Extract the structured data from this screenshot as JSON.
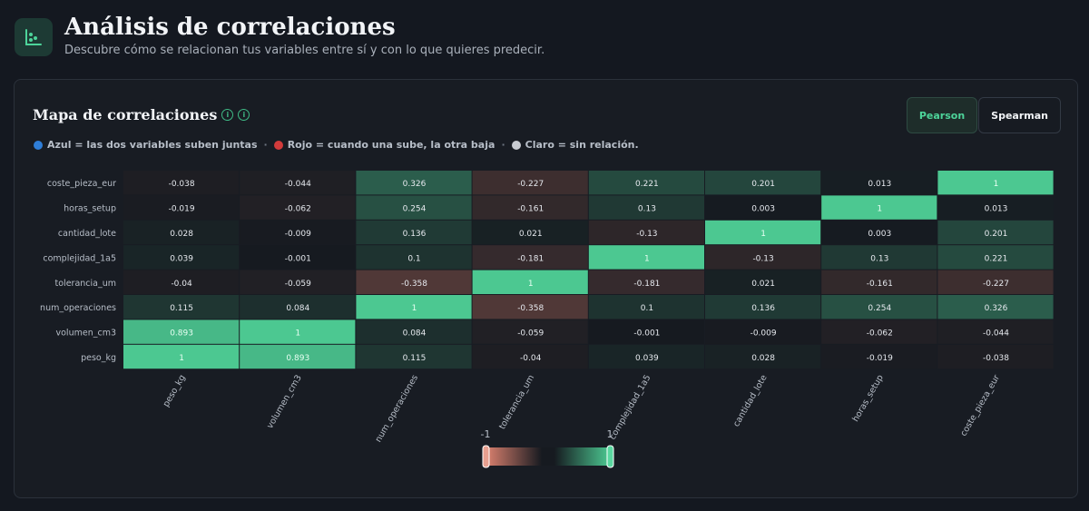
{
  "header": {
    "title": "Análisis de correlaciones",
    "subtitle": "Descubre cómo se relacionan tus variables entre sí y con lo que quieres predecir."
  },
  "card": {
    "title": "Mapa de correlaciones",
    "toggle": {
      "active": "Pearson",
      "inactive": "Spearman"
    },
    "legend": [
      {
        "color": "#2f7ed8",
        "text": "Azul = las dos variables suben juntas"
      },
      {
        "color": "#d23b3b",
        "text": "Rojo = cuando una sube, la otra baja"
      },
      {
        "color": "#c8ccd2",
        "text": "Claro = sin relación."
      }
    ],
    "legend_sep": "·"
  },
  "colors": {
    "accent": "#4dd49a",
    "positive": "#4cc891",
    "negative": "#d9806e",
    "neutral": "#161a20"
  },
  "chart_data": {
    "type": "heatmap",
    "x_labels": [
      "peso_kg",
      "volumen_cm3",
      "num_operaciones",
      "tolerancia_um",
      "complejidad_1a5",
      "cantidad_lote",
      "horas_setup",
      "coste_pieza_eur"
    ],
    "y_labels": [
      "coste_pieza_eur",
      "horas_setup",
      "cantidad_lote",
      "complejidad_1a5",
      "tolerancia_um",
      "num_operaciones",
      "volumen_cm3",
      "peso_kg"
    ],
    "values": [
      [
        -0.038,
        -0.044,
        0.326,
        -0.227,
        0.221,
        0.201,
        0.013,
        1
      ],
      [
        -0.019,
        -0.062,
        0.254,
        -0.161,
        0.13,
        0.003,
        1,
        0.013
      ],
      [
        0.028,
        -0.009,
        0.136,
        0.021,
        -0.13,
        1,
        0.003,
        0.201
      ],
      [
        0.039,
        -0.001,
        0.1,
        -0.181,
        1,
        -0.13,
        0.13,
        0.221
      ],
      [
        -0.04,
        -0.059,
        -0.358,
        1,
        -0.181,
        0.021,
        -0.161,
        -0.227
      ],
      [
        0.115,
        0.084,
        1,
        -0.358,
        0.1,
        0.136,
        0.254,
        0.326
      ],
      [
        0.893,
        1,
        0.084,
        -0.059,
        -0.001,
        -0.009,
        -0.062,
        -0.044
      ],
      [
        1,
        0.893,
        0.115,
        -0.04,
        0.039,
        0.028,
        -0.019,
        -0.038
      ]
    ],
    "value_labels": [
      [
        "-0.038",
        "-0.044",
        "0.326",
        "-0.227",
        "0.221",
        "0.201",
        "0.013",
        "1"
      ],
      [
        "-0.019",
        "-0.062",
        "0.254",
        "-0.161",
        "0.13",
        "0.003",
        "1",
        "0.013"
      ],
      [
        "0.028",
        "-0.009",
        "0.136",
        "0.021",
        "-0.13",
        "1",
        "0.003",
        "0.201"
      ],
      [
        "0.039",
        "-0.001",
        "0.1",
        "-0.181",
        "1",
        "-0.13",
        "0.13",
        "0.221"
      ],
      [
        "-0.04",
        "-0.059",
        "-0.358",
        "1",
        "-0.181",
        "0.021",
        "-0.161",
        "-0.227"
      ],
      [
        "0.115",
        "0.084",
        "1",
        "-0.358",
        "0.1",
        "0.136",
        "0.254",
        "0.326"
      ],
      [
        "0.893",
        "1",
        "0.084",
        "-0.059",
        "-0.001",
        "-0.009",
        "-0.062",
        "-0.044"
      ],
      [
        "1",
        "0.893",
        "0.115",
        "-0.04",
        "0.039",
        "0.028",
        "-0.019",
        "-0.038"
      ]
    ],
    "range": [
      -1,
      1
    ],
    "colorbar": {
      "min_label": "-1",
      "max_label": "1"
    }
  }
}
